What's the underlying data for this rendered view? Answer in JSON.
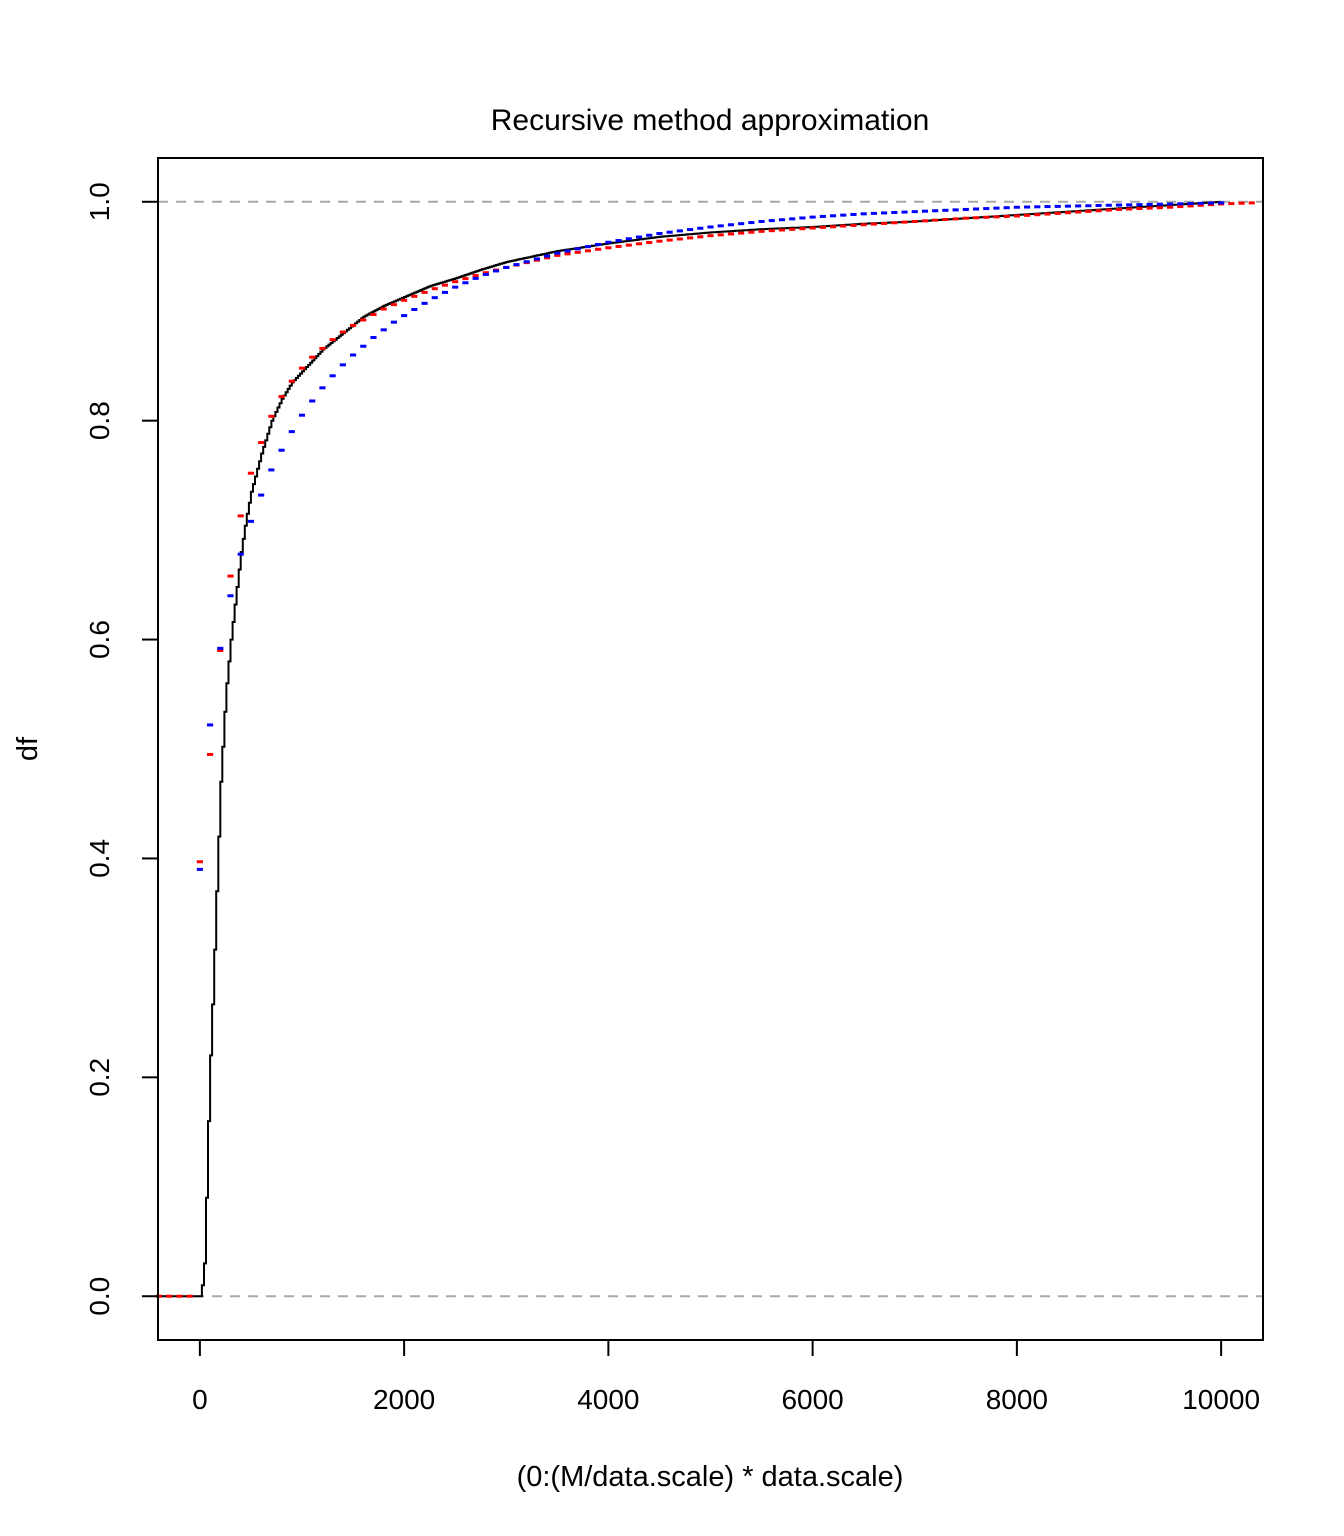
{
  "chart_data": {
    "type": "line",
    "title": "Recursive method approximation",
    "xlabel": "(0:(M/data.scale) * data.scale)",
    "ylabel": "df",
    "xlim": [
      -410,
      10410
    ],
    "ylim": [
      -0.04,
      1.04
    ],
    "x_ticks": [
      0,
      2000,
      4000,
      6000,
      8000,
      10000
    ],
    "x_tick_labels": [
      "0",
      "2000",
      "4000",
      "6000",
      "8000",
      "10000"
    ],
    "y_ticks": [
      0.0,
      0.2,
      0.4,
      0.6,
      0.8,
      1.0
    ],
    "y_tick_labels": [
      "0.0",
      "0.2",
      "0.4",
      "0.6",
      "0.8",
      "1.0"
    ],
    "reference_lines": [
      0,
      1
    ],
    "grid": false,
    "series": [
      {
        "color": "#000000",
        "style": "solid-fine-steps",
        "x": [
          -400,
          0,
          20,
          40,
          60,
          80,
          100,
          130,
          160,
          200,
          250,
          300,
          350,
          400,
          450,
          500,
          600,
          700,
          800,
          900,
          1000,
          1200,
          1400,
          1600,
          1800,
          2000,
          2250,
          2500,
          2750,
          3000,
          3500,
          4000,
          4500,
          5000,
          5500,
          6000,
          6500,
          7000,
          7500,
          8000,
          8500,
          9000,
          9500,
          10000
        ],
        "y": [
          0,
          0,
          0.01,
          0.03,
          0.09,
          0.16,
          0.22,
          0.29,
          0.37,
          0.47,
          0.55,
          0.6,
          0.64,
          0.68,
          0.71,
          0.735,
          0.77,
          0.8,
          0.82,
          0.835,
          0.845,
          0.865,
          0.88,
          0.895,
          0.905,
          0.913,
          0.923,
          0.93,
          0.938,
          0.945,
          0.955,
          0.962,
          0.968,
          0.972,
          0.975,
          0.977,
          0.98,
          0.982,
          0.985,
          0.988,
          0.991,
          0.994,
          0.997,
          1.0
        ]
      },
      {
        "color": "#ff0000",
        "style": "dashed-steps",
        "step_width": 100,
        "x": [
          -400,
          -300,
          -200,
          -100,
          0,
          100,
          200,
          300,
          400,
          500,
          600,
          700,
          800,
          900,
          1000,
          1100,
          1200,
          1300,
          1400,
          1500,
          1600,
          1700,
          1800,
          1900,
          2000,
          2250,
          2500,
          2750,
          3000,
          3500,
          4000,
          4500,
          5000,
          5500,
          6000,
          6500,
          7000,
          7500,
          8000,
          8500,
          9000,
          9500,
          10000,
          10300
        ],
        "y": [
          0,
          0,
          0,
          0,
          0.397,
          0.495,
          0.59,
          0.658,
          0.713,
          0.752,
          0.78,
          0.804,
          0.822,
          0.836,
          0.848,
          0.858,
          0.866,
          0.874,
          0.881,
          0.887,
          0.892,
          0.897,
          0.902,
          0.906,
          0.91,
          0.919,
          0.927,
          0.934,
          0.94,
          0.951,
          0.958,
          0.964,
          0.969,
          0.973,
          0.976,
          0.979,
          0.982,
          0.985,
          0.987,
          0.99,
          0.993,
          0.995,
          0.998,
          0.999
        ]
      },
      {
        "color": "#0000ff",
        "style": "dashed-steps",
        "step_width": 100,
        "x": [
          0,
          100,
          200,
          300,
          400,
          500,
          600,
          700,
          800,
          900,
          1000,
          1100,
          1200,
          1300,
          1400,
          1500,
          1600,
          1700,
          1800,
          1900,
          2000,
          2250,
          2500,
          2750,
          3000,
          3500,
          4000,
          4500,
          5000,
          5500,
          6000,
          6500,
          7000,
          7500,
          8000,
          8500,
          9000,
          9500,
          10000
        ],
        "y": [
          0.39,
          0.522,
          0.592,
          0.64,
          0.678,
          0.708,
          0.732,
          0.755,
          0.773,
          0.79,
          0.805,
          0.818,
          0.83,
          0.841,
          0.851,
          0.86,
          0.868,
          0.876,
          0.883,
          0.89,
          0.896,
          0.91,
          0.922,
          0.932,
          0.94,
          0.953,
          0.963,
          0.971,
          0.977,
          0.982,
          0.986,
          0.989,
          0.991,
          0.993,
          0.995,
          0.996,
          0.997,
          0.998,
          0.999
        ]
      }
    ]
  }
}
